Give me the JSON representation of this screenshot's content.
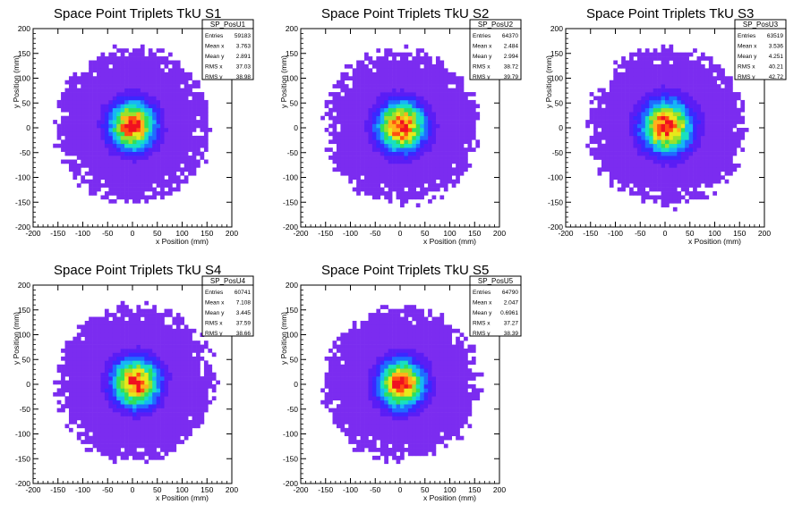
{
  "colors": {
    "palette": [
      "#7b2cf0",
      "#5a1df5",
      "#3a28ff",
      "#1f6cff",
      "#16b6f5",
      "#18e0c0",
      "#2fe05a",
      "#9ce02a",
      "#e8e81a",
      "#ffb21a",
      "#ff5010",
      "#f01020"
    ]
  },
  "chart_data": [
    {
      "type": "heatmap",
      "title": "Space Point Triplets TkU S1",
      "xlabel": "x Position (mm)",
      "ylabel": "y Position (mm)",
      "xlim": [
        -200,
        200
      ],
      "ylim": [
        -200,
        200
      ],
      "xticks": [
        -200,
        -150,
        -100,
        -50,
        0,
        50,
        100,
        150,
        200
      ],
      "yticks": [
        -200,
        -150,
        -100,
        -50,
        0,
        50,
        100,
        150,
        200
      ],
      "stats": {
        "name": "SP_PosU1",
        "rows": [
          {
            "label": "Entries",
            "value": "59183"
          },
          {
            "label": "Mean x",
            "value": "3.763"
          },
          {
            "label": "Mean y",
            "value": "2.891"
          },
          {
            "label": "RMS x",
            "value": "37.03"
          },
          {
            "label": "RMS y",
            "value": "38.98"
          }
        ]
      },
      "distribution": {
        "center_x": 0,
        "center_y": 5,
        "rms_x": 37.03,
        "rms_y": 38.98,
        "radius": 155
      }
    },
    {
      "type": "heatmap",
      "title": "Space Point Triplets TkU S2",
      "xlabel": "x Position (mm)",
      "ylabel": "y Position (mm)",
      "xlim": [
        -200,
        200
      ],
      "ylim": [
        -200,
        200
      ],
      "xticks": [
        -200,
        -150,
        -100,
        -50,
        0,
        50,
        100,
        150,
        200
      ],
      "yticks": [
        -200,
        -150,
        -100,
        -50,
        0,
        50,
        100,
        150,
        200
      ],
      "stats": {
        "name": "SP_PosU2",
        "rows": [
          {
            "label": "Entries",
            "value": "64370"
          },
          {
            "label": "Mean x",
            "value": "2.484"
          },
          {
            "label": "Mean y",
            "value": "2.994"
          },
          {
            "label": "RMS x",
            "value": "38.72"
          },
          {
            "label": "RMS y",
            "value": "39.79"
          }
        ]
      },
      "distribution": {
        "center_x": 3,
        "center_y": 3,
        "rms_x": 38.72,
        "rms_y": 39.79,
        "radius": 155
      }
    },
    {
      "type": "heatmap",
      "title": "Space Point Triplets TkU S3",
      "xlabel": "x Position (mm)",
      "ylabel": "y Position (mm)",
      "xlim": [
        -200,
        200
      ],
      "ylim": [
        -200,
        200
      ],
      "xticks": [
        -200,
        -150,
        -100,
        -50,
        0,
        50,
        100,
        150,
        200
      ],
      "yticks": [
        -200,
        -150,
        -100,
        -50,
        0,
        50,
        100,
        150,
        200
      ],
      "stats": {
        "name": "SP_PosU3",
        "rows": [
          {
            "label": "Entries",
            "value": "63519"
          },
          {
            "label": "Mean x",
            "value": "3.536"
          },
          {
            "label": "Mean y",
            "value": "4.251"
          },
          {
            "label": "RMS x",
            "value": "40.21"
          },
          {
            "label": "RMS y",
            "value": "42.72"
          }
        ]
      },
      "distribution": {
        "center_x": 3,
        "center_y": 3,
        "rms_x": 40.21,
        "rms_y": 42.72,
        "radius": 158
      }
    },
    {
      "type": "heatmap",
      "title": "Space Point Triplets TkU S4",
      "xlabel": "x Position (mm)",
      "ylabel": "y Position (mm)",
      "xlim": [
        -200,
        200
      ],
      "ylim": [
        -200,
        200
      ],
      "xticks": [
        -200,
        -150,
        -100,
        -50,
        0,
        50,
        100,
        150,
        200
      ],
      "yticks": [
        -200,
        -150,
        -100,
        -50,
        0,
        50,
        100,
        150,
        200
      ],
      "stats": {
        "name": "SP_PosU4",
        "rows": [
          {
            "label": "Entries",
            "value": "60741"
          },
          {
            "label": "Mean x",
            "value": "7.108"
          },
          {
            "label": "Mean y",
            "value": "3.445"
          },
          {
            "label": "RMS x",
            "value": "37.59"
          },
          {
            "label": "RMS y",
            "value": "38.66"
          }
        ]
      },
      "distribution": {
        "center_x": 7,
        "center_y": 3,
        "rms_x": 37.59,
        "rms_y": 38.66,
        "radius": 158
      }
    },
    {
      "type": "heatmap",
      "title": "Space Point Triplets TkU S5",
      "xlabel": "x Position (mm)",
      "ylabel": "y Position (mm)",
      "xlim": [
        -200,
        200
      ],
      "ylim": [
        -200,
        200
      ],
      "xticks": [
        -200,
        -150,
        -100,
        -50,
        0,
        50,
        100,
        150,
        200
      ],
      "yticks": [
        -200,
        -150,
        -100,
        -50,
        0,
        50,
        100,
        150,
        200
      ],
      "stats": {
        "name": "SP_PosU5",
        "rows": [
          {
            "label": "Entries",
            "value": "64790"
          },
          {
            "label": "Mean x",
            "value": "2.047"
          },
          {
            "label": "Mean y",
            "value": "0.6961"
          },
          {
            "label": "RMS x",
            "value": "37.27"
          },
          {
            "label": "RMS y",
            "value": "38.39"
          }
        ]
      },
      "distribution": {
        "center_x": 2,
        "center_y": 1,
        "rms_x": 37.27,
        "rms_y": 38.39,
        "radius": 155
      }
    }
  ]
}
